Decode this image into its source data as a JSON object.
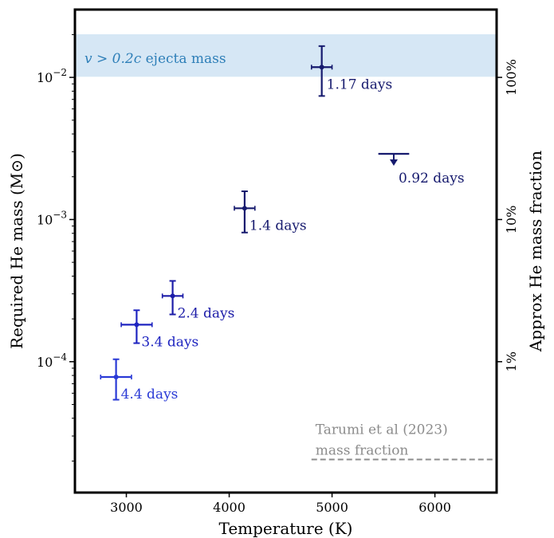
{
  "chart_data": {
    "type": "scatter",
    "xlabel": "Temperature (K)",
    "ylabel_left": "Required He mass (M⊙)",
    "ylabel_right": "Approx He mass fraction",
    "xlim": [
      2500,
      6600
    ],
    "ylim": [
      1.2e-05,
      0.03
    ],
    "yscale": "log",
    "x_ticks": [
      {
        "value": 3000,
        "label": "3000"
      },
      {
        "value": 4000,
        "label": "4000"
      },
      {
        "value": 5000,
        "label": "5000"
      },
      {
        "value": 6000,
        "label": "6000"
      }
    ],
    "y_ticks_left": [
      {
        "value": 0.0001,
        "base": "10",
        "exp": "−4"
      },
      {
        "value": 0.001,
        "base": "10",
        "exp": "−3"
      },
      {
        "value": 0.01,
        "base": "10",
        "exp": "−2"
      }
    ],
    "y_ticks_right": [
      {
        "value": 0.0001,
        "label": "1%"
      },
      {
        "value": 0.001,
        "label": "10%"
      },
      {
        "value": 0.01,
        "label": "100%"
      }
    ],
    "band": {
      "y_low": 0.0101,
      "y_high": 0.0201,
      "label_math": "v > 0.2c",
      "label_text": " ejecta mass",
      "color": "#cfe3f3"
    },
    "reference": {
      "y": 2.05e-05,
      "x_start": 4800,
      "x_end": 6600,
      "label_line1": "Tarumi et al (2023)",
      "label_line2": "mass fraction",
      "color": "#8c8c8c"
    },
    "points": [
      {
        "label": "1.17 days",
        "x": 4900,
        "xerr": 100,
        "y": 0.0118,
        "y_low": 0.0074,
        "y_high": 0.0166,
        "color": "#161a6e"
      },
      {
        "label": "0.92 days",
        "x": 5600,
        "xerr": 150,
        "upper_limit": 0.0029,
        "color": "#161a6e"
      },
      {
        "label": "1.4 days",
        "x": 4150,
        "xerr": 100,
        "y": 0.0012,
        "y_low": 0.00081,
        "y_high": 0.00158,
        "color": "#161a6e"
      },
      {
        "label": "2.4 days",
        "x": 3450,
        "xerr": 100,
        "y": 0.00029,
        "y_low": 0.000215,
        "y_high": 0.00037,
        "color": "#1c1ca8"
      },
      {
        "label": "3.4 days",
        "x": 3100,
        "xerr": 150,
        "y": 0.000182,
        "y_low": 0.000135,
        "y_high": 0.00023,
        "color": "#1e24c0"
      },
      {
        "label": "4.4 days",
        "x": 2900,
        "xerr": 150,
        "y": 7.8e-05,
        "y_low": 5.4e-05,
        "y_high": 0.000104,
        "color": "#2a3ad6"
      }
    ]
  }
}
